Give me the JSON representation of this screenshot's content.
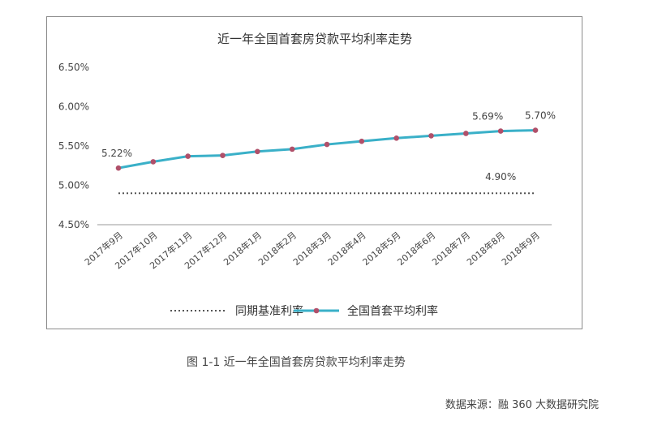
{
  "chart_data": {
    "type": "line",
    "title": "近一年全国首套房贷款平均利率走势",
    "categories": [
      "2017年9月",
      "2017年10月",
      "2017年11月",
      "2017年12月",
      "2018年1月",
      "2018年2月",
      "2018年3月",
      "2018年4月",
      "2018年5月",
      "2018年6月",
      "2018年7月",
      "2018年8月",
      "2018年9月"
    ],
    "y_ticks": [
      "6.50%",
      "6.00%",
      "5.50%",
      "5.00%",
      "4.50%"
    ],
    "ylim": [
      4.5,
      6.5
    ],
    "series": [
      {
        "name": "同期基准利率",
        "style": "dotted",
        "color": "#555555",
        "values": [
          4.9,
          4.9,
          4.9,
          4.9,
          4.9,
          4.9,
          4.9,
          4.9,
          4.9,
          4.9,
          4.9,
          4.9,
          4.9
        ],
        "labels": [
          {
            "index": 11,
            "text": "4.90%"
          }
        ]
      },
      {
        "name": "全国首套平均利率",
        "style": "solid",
        "color": "#3ab0c8",
        "marker_color": "#b0506a",
        "values": [
          5.22,
          5.3,
          5.37,
          5.38,
          5.43,
          5.46,
          5.52,
          5.56,
          5.6,
          5.63,
          5.66,
          5.69,
          5.7
        ],
        "labels": [
          {
            "index": 0,
            "text": "5.22%"
          },
          {
            "index": 11,
            "text": "5.69%"
          },
          {
            "index": 12,
            "text": "5.70%"
          }
        ]
      }
    ],
    "legend_placement": "bottom",
    "grid": false
  },
  "caption": "图 1-1  近一年全国首套房贷款平均利率走势",
  "source": "数据来源：融 360 大数据研究院"
}
